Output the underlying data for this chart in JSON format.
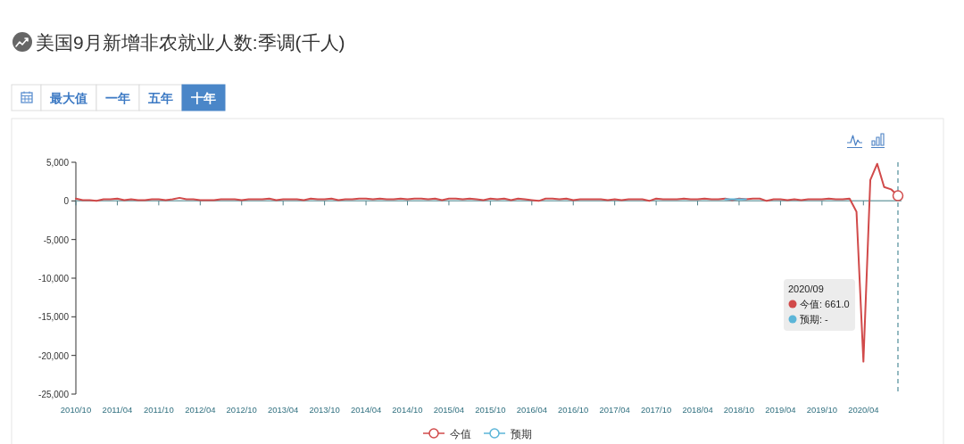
{
  "chart_data": {
    "type": "line",
    "title": "美国9月新增非农就业人数:季调(千人)",
    "x": [
      "2010-10",
      "2010-11",
      "2010-12",
      "2011-01",
      "2011-02",
      "2011-03",
      "2011-04",
      "2011-05",
      "2011-06",
      "2011-07",
      "2011-08",
      "2011-09",
      "2011-10",
      "2011-11",
      "2011-12",
      "2012-01",
      "2012-02",
      "2012-03",
      "2012-04",
      "2012-05",
      "2012-06",
      "2012-07",
      "2012-08",
      "2012-09",
      "2012-10",
      "2012-11",
      "2012-12",
      "2013-01",
      "2013-02",
      "2013-03",
      "2013-04",
      "2013-05",
      "2013-06",
      "2013-07",
      "2013-08",
      "2013-09",
      "2013-10",
      "2013-11",
      "2013-12",
      "2014-01",
      "2014-02",
      "2014-03",
      "2014-04",
      "2014-05",
      "2014-06",
      "2014-07",
      "2014-08",
      "2014-09",
      "2014-10",
      "2014-11",
      "2014-12",
      "2015-01",
      "2015-02",
      "2015-03",
      "2015-04",
      "2015-05",
      "2015-06",
      "2015-07",
      "2015-08",
      "2015-09",
      "2015-10",
      "2015-11",
      "2015-12",
      "2016-01",
      "2016-02",
      "2016-03",
      "2016-04",
      "2016-05",
      "2016-06",
      "2016-07",
      "2016-08",
      "2016-09",
      "2016-10",
      "2016-11",
      "2016-12",
      "2017-01",
      "2017-02",
      "2017-03",
      "2017-04",
      "2017-05",
      "2017-06",
      "2017-07",
      "2017-08",
      "2017-09",
      "2017-10",
      "2017-11",
      "2017-12",
      "2018-01",
      "2018-02",
      "2018-03",
      "2018-04",
      "2018-05",
      "2018-06",
      "2018-07",
      "2018-08",
      "2018-09",
      "2018-10",
      "2018-11",
      "2018-12",
      "2019-01",
      "2019-02",
      "2019-03",
      "2019-04",
      "2019-05",
      "2019-06",
      "2019-07",
      "2019-08",
      "2019-09",
      "2019-10",
      "2019-11",
      "2019-12",
      "2020-01",
      "2020-02",
      "2020-03",
      "2020-04",
      "2020-05",
      "2020-06",
      "2020-07",
      "2020-08",
      "2020-09"
    ],
    "series": [
      {
        "name": "今值",
        "color": "#d14a4a",
        "values": [
          300,
          100,
          100,
          0,
          200,
          200,
          300,
          100,
          200,
          100,
          100,
          200,
          200,
          100,
          200,
          400,
          200,
          200,
          100,
          100,
          100,
          200,
          200,
          200,
          100,
          200,
          200,
          200,
          300,
          100,
          200,
          200,
          200,
          100,
          300,
          200,
          200,
          300,
          100,
          200,
          200,
          300,
          300,
          200,
          300,
          200,
          200,
          300,
          200,
          300,
          300,
          200,
          300,
          100,
          300,
          300,
          200,
          300,
          200,
          100,
          300,
          200,
          300,
          100,
          300,
          200,
          100,
          0,
          300,
          300,
          200,
          300,
          100,
          200,
          200,
          200,
          200,
          100,
          200,
          100,
          200,
          200,
          200,
          0,
          300,
          200,
          200,
          200,
          300,
          200,
          200,
          300,
          200,
          200,
          300,
          100,
          300,
          200,
          300,
          300,
          0,
          200,
          200,
          100,
          200,
          100,
          200,
          200,
          200,
          300,
          200,
          200,
          300,
          -1400,
          -20800,
          2700,
          4800,
          1800,
          1500,
          661
        ]
      },
      {
        "name": "预期",
        "color": "#5bb5d8",
        "x": [
          "2018-08",
          "2018-09",
          "2018-10",
          "2018-11"
        ],
        "values": [
          200,
          200,
          200,
          200
        ]
      }
    ],
    "xlim": [
      "2010-10",
      "2020-09"
    ],
    "xticks": [
      {
        "value": "2010-10",
        "label": "2010/10"
      },
      {
        "value": "2011-04",
        "label": "2011/04"
      },
      {
        "value": "2011-10",
        "label": "2011/10"
      },
      {
        "value": "2012-04",
        "label": "2012/04"
      },
      {
        "value": "2012-10",
        "label": "2012/10"
      },
      {
        "value": "2013-04",
        "label": "2013/04"
      },
      {
        "value": "2013-10",
        "label": "2013/10"
      },
      {
        "value": "2014-04",
        "label": "2014/04"
      },
      {
        "value": "2014-10",
        "label": "2014/10"
      },
      {
        "value": "2015-04",
        "label": "2015/04"
      },
      {
        "value": "2015-10",
        "label": "2015/10"
      },
      {
        "value": "2016-04",
        "label": "2016/04"
      },
      {
        "value": "2016-10",
        "label": "2016/10"
      },
      {
        "value": "2017-04",
        "label": "2017/04"
      },
      {
        "value": "2017-10",
        "label": "2017/10"
      },
      {
        "value": "2018-04",
        "label": "2018/04"
      },
      {
        "value": "2018-10",
        "label": "2018/10"
      },
      {
        "value": "2019-04",
        "label": "2019/04"
      },
      {
        "value": "2019-10",
        "label": "2019/10"
      },
      {
        "value": "2020-04",
        "label": "2020/04"
      }
    ],
    "ylim": [
      -25000,
      5000
    ],
    "yticks": [
      {
        "value": -25000,
        "label": "-25,000"
      },
      {
        "value": -20000,
        "label": "-20,000"
      },
      {
        "value": -15000,
        "label": "-15,000"
      },
      {
        "value": -10000,
        "label": "-10,000"
      },
      {
        "value": -5000,
        "label": "-5,000"
      },
      0,
      {
        "value": 5000,
        "label": "5,000"
      }
    ],
    "ref_lines": [
      {
        "axis": "y",
        "value": 0,
        "color": "#7fa8ad"
      },
      {
        "axis": "x",
        "value": "2020-09",
        "line_style": "dashed",
        "color": "#4f8c99"
      }
    ],
    "annotations": [
      "2020/09",
      "今值: 661.0",
      "预期: -",
      "最大值",
      "一年",
      "五年",
      "十年"
    ],
    "legend": "bottom"
  }
}
